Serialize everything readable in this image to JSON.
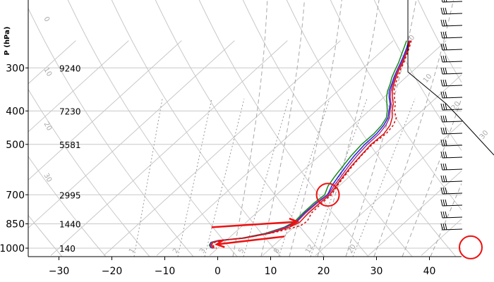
{
  "chart_data": {
    "type": "line",
    "title": "",
    "xlabel": "",
    "ylabel": "P (hPa)",
    "xlim": [
      -35,
      50
    ],
    "ylim": [
      1050,
      250
    ],
    "y_scale": "log",
    "grid": true,
    "x_ticks": [
      -30,
      -20,
      -10,
      0,
      10,
      20,
      30,
      40
    ],
    "pressure_levels": [
      {
        "p": 300,
        "label": "300",
        "height": "9240"
      },
      {
        "p": 400,
        "label": "400",
        "height": "7230"
      },
      {
        "p": 500,
        "label": "500",
        "height": "5581"
      },
      {
        "p": 700,
        "label": "700",
        "height": "2995"
      },
      {
        "p": 850,
        "label": "850",
        "height": "1440"
      },
      {
        "p": 1000,
        "label": "1000",
        "height": "140"
      }
    ],
    "isotherm_labels": [
      "0",
      "10",
      "20",
      "30"
    ],
    "mixing_ratio_labels": [
      "1",
      "2",
      "3",
      "5",
      "8",
      "12",
      "20"
    ],
    "dry_adiabat_labels": [
      "0",
      "10",
      "20",
      "30"
    ],
    "series": [
      {
        "color": "#1a8a1a",
        "points": [
          [
            -7.5,
            250
          ],
          [
            -6.5,
            262
          ],
          [
            -5.5,
            275
          ],
          [
            -4.4,
            290
          ],
          [
            -3.5,
            305
          ],
          [
            -2.6,
            320
          ],
          [
            -1.5,
            335
          ],
          [
            -0.6,
            350
          ],
          [
            0.5,
            365
          ],
          [
            2,
            382
          ],
          [
            3.5,
            400
          ],
          [
            4.7,
            418
          ],
          [
            5.4,
            440
          ],
          [
            5.7,
            465
          ],
          [
            5.6,
            500
          ],
          [
            6,
            540
          ],
          [
            6.6,
            580
          ],
          [
            7.2,
            620
          ],
          [
            7.9,
            660
          ],
          [
            8.8,
            690
          ],
          [
            9.1,
            700
          ],
          [
            8.8,
            740
          ],
          [
            8.8,
            790
          ],
          [
            9,
            840
          ],
          [
            8.2,
            870
          ],
          [
            6,
            905
          ],
          [
            2.5,
            935
          ],
          [
            -1.5,
            950
          ],
          [
            -2.5,
            962
          ],
          [
            -2.2,
            980
          ],
          [
            -1.5,
            995
          ],
          [
            -1,
            1000
          ]
        ]
      },
      {
        "color": "#2222dd",
        "points": [
          [
            -7,
            250
          ],
          [
            -6,
            262
          ],
          [
            -5,
            275
          ],
          [
            -4,
            290
          ],
          [
            -3.1,
            305
          ],
          [
            -2.2,
            320
          ],
          [
            -1.2,
            335
          ],
          [
            -0.3,
            350
          ],
          [
            1,
            365
          ],
          [
            2.6,
            382
          ],
          [
            3.8,
            400
          ],
          [
            5,
            418
          ],
          [
            5.8,
            440
          ],
          [
            6.2,
            465
          ],
          [
            6.2,
            500
          ],
          [
            6.6,
            540
          ],
          [
            7.2,
            580
          ],
          [
            7.9,
            620
          ],
          [
            8.6,
            660
          ],
          [
            9.4,
            690
          ],
          [
            9.6,
            700
          ],
          [
            9.2,
            740
          ],
          [
            9.1,
            790
          ],
          [
            9.3,
            840
          ],
          [
            8.4,
            870
          ],
          [
            6.3,
            905
          ],
          [
            2.7,
            935
          ],
          [
            -1.4,
            950
          ],
          [
            -2.4,
            962
          ],
          [
            -2.1,
            980
          ],
          [
            -1.4,
            995
          ],
          [
            -0.9,
            1000
          ]
        ]
      },
      {
        "color": "#aa3388",
        "points": [
          [
            -7,
            250
          ],
          [
            -5.8,
            262
          ],
          [
            -4.8,
            275
          ],
          [
            -3.8,
            290
          ],
          [
            -3,
            305
          ],
          [
            -2,
            320
          ],
          [
            -1,
            335
          ],
          [
            0,
            350
          ],
          [
            1.2,
            365
          ],
          [
            2.8,
            382
          ],
          [
            4,
            400
          ],
          [
            5.3,
            418
          ],
          [
            6.2,
            440
          ],
          [
            6.7,
            465
          ],
          [
            6.7,
            500
          ],
          [
            7.1,
            540
          ],
          [
            7.7,
            580
          ],
          [
            8.4,
            620
          ],
          [
            9,
            660
          ],
          [
            9.6,
            690
          ],
          [
            9.8,
            700
          ],
          [
            9.4,
            740
          ],
          [
            9.3,
            790
          ],
          [
            9.5,
            840
          ],
          [
            8.6,
            870
          ],
          [
            6.4,
            905
          ],
          [
            2.8,
            935
          ],
          [
            -1.3,
            950
          ],
          [
            -2.3,
            962
          ],
          [
            -2,
            980
          ],
          [
            -1.3,
            995
          ],
          [
            -0.8,
            1000
          ]
        ]
      },
      {
        "color": "#dd1111",
        "points": [
          [
            -6.8,
            250
          ],
          [
            -5.7,
            262
          ],
          [
            -4.7,
            275
          ],
          [
            -3.6,
            290
          ],
          [
            -2.8,
            305
          ],
          [
            -1.8,
            320
          ],
          [
            -0.8,
            335
          ],
          [
            0.3,
            350
          ],
          [
            1.6,
            365
          ],
          [
            3.2,
            382
          ],
          [
            4.4,
            400
          ],
          [
            5.8,
            418
          ],
          [
            7,
            440
          ],
          [
            7.6,
            465
          ],
          [
            7.4,
            500
          ],
          [
            7.8,
            540
          ],
          [
            8.2,
            580
          ],
          [
            8.8,
            620
          ],
          [
            9.4,
            660
          ],
          [
            9.9,
            690
          ],
          [
            10.1,
            700
          ],
          [
            9.9,
            740
          ],
          [
            9.8,
            790
          ],
          [
            10.1,
            840
          ],
          [
            9.2,
            870
          ],
          [
            6.8,
            905
          ],
          [
            3,
            935
          ],
          [
            -1,
            950
          ],
          [
            -2.1,
            962
          ],
          [
            -1.8,
            980
          ],
          [
            -1,
            995
          ],
          [
            -0.6,
            1000
          ]
        ]
      },
      {
        "color": "#cc1111",
        "dashed": true,
        "points": [
          [
            -6.6,
            250
          ],
          [
            -5.5,
            262
          ],
          [
            -4.5,
            275
          ],
          [
            -3.4,
            290
          ],
          [
            -2.5,
            305
          ],
          [
            -1.5,
            320
          ],
          [
            -0.5,
            335
          ],
          [
            0.6,
            350
          ],
          [
            2,
            365
          ],
          [
            3.6,
            382
          ],
          [
            4.8,
            400
          ],
          [
            6.6,
            418
          ],
          [
            7.6,
            440
          ],
          [
            8,
            465
          ],
          [
            7.6,
            500
          ],
          [
            7.9,
            540
          ],
          [
            8.4,
            580
          ],
          [
            9,
            620
          ],
          [
            9.6,
            660
          ],
          [
            10.2,
            690
          ],
          [
            10.4,
            700
          ],
          [
            10.3,
            740
          ],
          [
            10.4,
            790
          ],
          [
            11.3,
            835
          ],
          [
            11,
            860
          ],
          [
            9.6,
            878
          ],
          [
            7.5,
            900
          ],
          [
            3.5,
            930
          ],
          [
            -0.5,
            948
          ],
          [
            -1.8,
            962
          ],
          [
            -1.5,
            980
          ],
          [
            -0.8,
            995
          ],
          [
            -0.2,
            1000
          ]
        ]
      }
    ],
    "annotations": [
      {
        "type": "arrow",
        "color": "#ee1111",
        "from": [
          -5.5,
          870
        ],
        "to": [
          9.5,
          838
        ]
      },
      {
        "type": "arrow",
        "color": "#ee1111",
        "from": [
          10.2,
          925
        ],
        "to": [
          -1,
          975
        ]
      },
      {
        "type": "circle",
        "color": "#ee1111",
        "center": [
          9.7,
          700
        ]
      },
      {
        "type": "circle",
        "color": "#ee1111",
        "center": [
          47.3,
          995
        ]
      }
    ]
  }
}
